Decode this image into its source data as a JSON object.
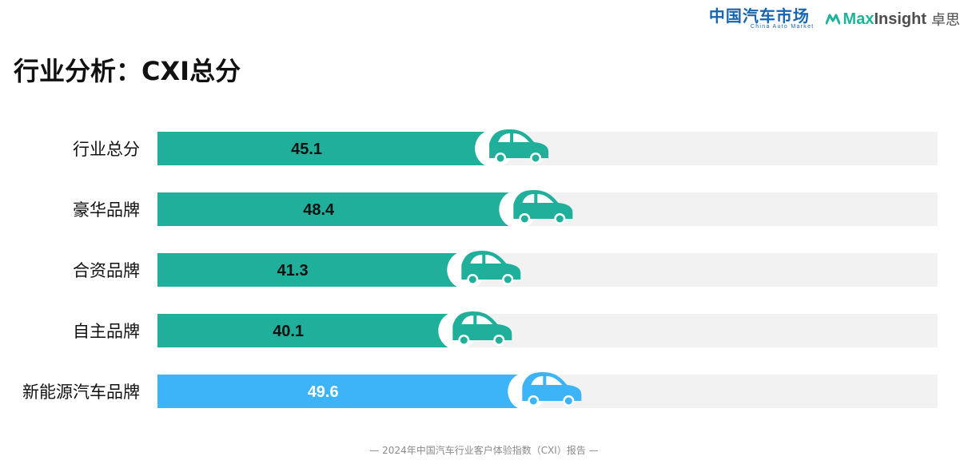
{
  "logos": {
    "cam_text": "中国汽车市场",
    "cam_sub": "China Auto Market",
    "maxinsight_max": "Max",
    "maxinsight_insight": "Insight",
    "maxinsight_cn": "卓思"
  },
  "title": "行业分析：CXI总分",
  "footer": "— 2024年中国汽车行业客户体验指数（CXI）报告 —",
  "colors": {
    "teal": "#1faf9a",
    "blue": "#3cb4f7",
    "track": "#f2f2f2",
    "icon_teal": "#1faf9a",
    "icon_blue": "#3cb4f7"
  },
  "chart_data": {
    "type": "bar",
    "orientation": "horizontal",
    "title": "行业分析：CXI总分",
    "categories": [
      "行业总分",
      "豪华品牌",
      "合资品牌",
      "自主品牌",
      "新能源汽车品牌"
    ],
    "values": [
      45.1,
      48.4,
      41.3,
      40.1,
      49.6
    ],
    "value_labels": [
      "45.1",
      "48.4",
      "41.3",
      "40.1",
      "49.6"
    ],
    "xlim": [
      0,
      100
    ],
    "bar_colors": [
      "#1faf9a",
      "#1faf9a",
      "#1faf9a",
      "#1faf9a",
      "#3cb4f7"
    ],
    "grid": false,
    "legend": "none",
    "marker_icon": "car-icon"
  }
}
